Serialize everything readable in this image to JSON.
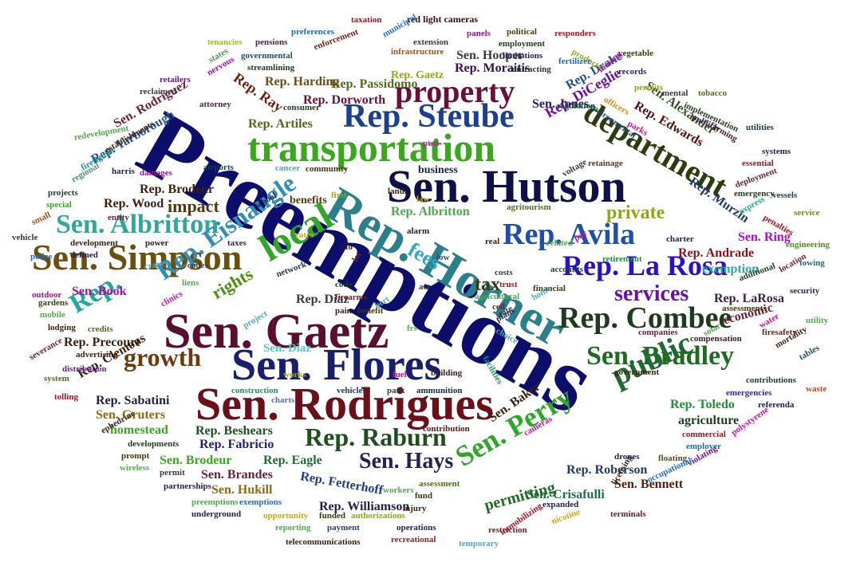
{
  "words": [
    {
      "text": "Preemptions",
      "color": "#0d0d6b"
    },
    {
      "text": "Rep. Horner",
      "color": "#2a7f8a"
    },
    {
      "text": "Sen. Hutson",
      "color": "#101048"
    },
    {
      "text": "transportation",
      "color": "#3aa81e"
    },
    {
      "text": "Rep. Steube",
      "color": "#1d3f8f"
    },
    {
      "text": "Sen. Gaetz",
      "color": "#5a0f2e"
    },
    {
      "text": "Sen. Flores",
      "color": "#1a1f6b"
    },
    {
      "text": "Sen. Rodrigues",
      "color": "#6b0f1a"
    },
    {
      "text": "department",
      "color": "#2f3a0f"
    },
    {
      "text": "local",
      "color": "#2fa82a"
    },
    {
      "text": "Sen. Simpson",
      "color": "#6b4f0f"
    },
    {
      "text": "Sen. Albritton",
      "color": "#2fa89a"
    },
    {
      "text": "Rep. Avila",
      "color": "#1f4fa8"
    },
    {
      "text": "Rep. La Rosa",
      "color": "#2a10c8"
    },
    {
      "text": "property",
      "color": "#6b0f3a"
    },
    {
      "text": "Rep. Combee",
      "color": "#1f3a1f"
    },
    {
      "text": "Sen. Bradley",
      "color": "#1f6b1f"
    },
    {
      "text": "public",
      "color": "#1f6b2f"
    },
    {
      "text": "Rep. Raburn",
      "color": "#1f4f1f"
    },
    {
      "text": "Sen. Hays",
      "color": "#2a1f4f"
    },
    {
      "text": "Sen. Perry",
      "color": "#2fa82a"
    },
    {
      "text": "Rep. Eisnaugle",
      "color": "#2f8fb8"
    },
    {
      "text": "growth",
      "color": "#6b3a0f"
    },
    {
      "text": "Rep.",
      "color": "#1fa8a0"
    },
    {
      "text": "rights",
      "color": "#4f8f0f"
    },
    {
      "text": "fees",
      "color": "#2fa8c8"
    },
    {
      "text": "services",
      "color": "#6b0fa8"
    },
    {
      "text": "tax",
      "color": "#3a3a0f"
    },
    {
      "text": "private",
      "color": "#8fa80f"
    },
    {
      "text": "impact",
      "color": "#4f3a0f"
    },
    {
      "text": "Rep. Passidomo",
      "color": "#4f6b1f"
    },
    {
      "text": "Sen. Hooper",
      "color": "#3a3a3a"
    },
    {
      "text": "Rep. Moraitis",
      "color": "#3a0f4f"
    },
    {
      "text": "Rep. Harding",
      "color": "#6b4f0f"
    },
    {
      "text": "Rep. Gaetz",
      "color": "#8fa80f"
    },
    {
      "text": "Rep. Dorworth",
      "color": "#6b0f3a"
    },
    {
      "text": "Sen. Jones",
      "color": "#1f1f4f"
    },
    {
      "text": "Rep. Artiles",
      "color": "#4f6b1f"
    },
    {
      "text": "Rep. Drake",
      "color": "#1f4f8f"
    },
    {
      "text": "Rep. DiCeglie",
      "color": "#6b0fa8"
    },
    {
      "text": "Rep. Edwards",
      "color": "#4f0f0f"
    },
    {
      "text": "Sen. Alexander",
      "color": "#3a4f1f"
    },
    {
      "text": "Rep. Murzin",
      "color": "#1f3a6b"
    },
    {
      "text": "Rep. Yarborough",
      "color": "#1f4f8f"
    },
    {
      "text": "Sen. Rodriguez",
      "color": "#6b1f3a"
    },
    {
      "text": "Rep. Ray",
      "color": "#6b1f0f"
    },
    {
      "text": "Rep. Brodeur",
      "color": "#3a1f0f"
    },
    {
      "text": "Rep. Wood",
      "color": "#3a1f0f"
    },
    {
      "text": "Rep. Albritton",
      "color": "#4fa84f"
    },
    {
      "text": "Sen. Ring",
      "color": "#a80fc8"
    },
    {
      "text": "Rep. Andrade",
      "color": "#8f0f1f"
    },
    {
      "text": "exemption",
      "color": "#2fa8a0"
    },
    {
      "text": "Rep. LaRosa",
      "color": "#3a1f4f"
    },
    {
      "text": "economic",
      "color": "#6b1f3a"
    },
    {
      "text": "Sen. Book",
      "color": "#a80fa8"
    },
    {
      "text": "Rep. Diaz",
      "color": "#3a3a3a"
    },
    {
      "text": "Rep. Precourt",
      "color": "#3a1f0f"
    },
    {
      "text": "Sen. Diaz",
      "color": "#4fc8c8"
    },
    {
      "text": "Rep. Clemons",
      "color": "#3a1f0f"
    },
    {
      "text": "Rep. Sabatini",
      "color": "#1f1f4f"
    },
    {
      "text": "Sen. Gruters",
      "color": "#8f6b0f"
    },
    {
      "text": "homestead",
      "color": "#3aa81e"
    },
    {
      "text": "Rep. Beshears",
      "color": "#1f4f1f"
    },
    {
      "text": "Rep. Fabricio",
      "color": "#1f1f6b"
    },
    {
      "text": "Sen. Brodeur",
      "color": "#3aa81e"
    },
    {
      "text": "Rep. Eagle",
      "color": "#1f6b3a"
    },
    {
      "text": "Sen. Brandes",
      "color": "#6b1f3a"
    },
    {
      "text": "Sen. Hukill",
      "color": "#8f6b0f"
    },
    {
      "text": "Rep. Fetterhoff",
      "color": "#1f3a8f"
    },
    {
      "text": "Rep. Williamson",
      "color": "#1f1f4f"
    },
    {
      "text": "Sen. Crisafulli",
      "color": "#1f6b4f"
    },
    {
      "text": "Sen. Bennett",
      "color": "#4f1f0f"
    },
    {
      "text": "Rep. Roberson",
      "color": "#1f3a6b"
    },
    {
      "text": "Rep. Toledo",
      "color": "#1f8f3a"
    },
    {
      "text": "agriculture",
      "color": "#1f3a1f"
    },
    {
      "text": "Sen. Baker",
      "color": "#3a1f0f"
    },
    {
      "text": "permitting",
      "color": "#1f6b1f"
    },
    {
      "text": "business",
      "color": "#1f1f4f"
    },
    {
      "text": "benefits",
      "color": "#4f3a0f"
    },
    {
      "text": "red light cameras",
      "color": "#3a0f0f"
    },
    {
      "text": "taxation",
      "color": "#a80f1f"
    },
    {
      "text": "municipal",
      "color": "#1f6bc8"
    },
    {
      "text": "preferences",
      "color": "#1f6ba8"
    },
    {
      "text": "political",
      "color": "#4f3a0f"
    },
    {
      "text": "responders",
      "color": "#a80f1f"
    },
    {
      "text": "employment",
      "color": "#1f3a1f"
    },
    {
      "text": "limitations",
      "color": "#1f1f4f"
    },
    {
      "text": "extension",
      "color": "#3a3a3a"
    },
    {
      "text": "infrastructure",
      "color": "#a84f0f"
    },
    {
      "text": "panels",
      "color": "#a80f8f"
    },
    {
      "text": "contracting",
      "color": "#1f3a1f"
    },
    {
      "text": "products",
      "color": "#8fa80f"
    },
    {
      "text": "vegetable",
      "color": "#3a3a0f"
    },
    {
      "text": "fertilizer",
      "color": "#1f6ba8"
    },
    {
      "text": "tenancies",
      "color": "#8fc80f"
    },
    {
      "text": "pensions",
      "color": "#4f1f3a"
    },
    {
      "text": "enforcement",
      "color": "#6b1f0f"
    },
    {
      "text": "governmental",
      "color": "#1f4f6b"
    },
    {
      "text": "streamlining",
      "color": "#1f3a1f"
    },
    {
      "text": "states",
      "color": "#4f8f6b"
    },
    {
      "text": "nervous",
      "color": "#a80f8f"
    },
    {
      "text": "retailers",
      "color": "#6b0fa8"
    },
    {
      "text": "reclaimed",
      "color": "#3a3a3a"
    },
    {
      "text": "attorney",
      "color": "#4f1f3a"
    },
    {
      "text": "consumer",
      "color": "#1f3a1f"
    },
    {
      "text": "records",
      "color": "#3a1f4f"
    },
    {
      "text": "moving",
      "color": "#a80fa8"
    },
    {
      "text": "permits",
      "color": "#8fa80f"
    },
    {
      "text": "mental",
      "color": "#3a3a3a"
    },
    {
      "text": "tobacco",
      "color": "#4f6b1f"
    },
    {
      "text": "regulation",
      "color": "#1f4f4f"
    },
    {
      "text": "officers",
      "color": "#c88f0f"
    },
    {
      "text": "environmental",
      "color": "#1f4f6b"
    },
    {
      "text": "implementation",
      "color": "#1f3a1f"
    },
    {
      "text": "publicly",
      "color": "#3a1f4f"
    },
    {
      "text": "utilities",
      "color": "#1f3a3a"
    },
    {
      "text": "farming",
      "color": "#3a1f1f"
    },
    {
      "text": "parks",
      "color": "#c80f8f"
    },
    {
      "text": "systems",
      "color": "#1f1f4f"
    },
    {
      "text": "essential",
      "color": "#a80f1f"
    },
    {
      "text": "deployment",
      "color": "#6b1f3a"
    },
    {
      "text": "emergency",
      "color": "#1f3a1f"
    },
    {
      "text": "vessels",
      "color": "#1f3a4f"
    },
    {
      "text": "express",
      "color": "#1fa88f"
    },
    {
      "text": "service",
      "color": "#6b8f0f"
    },
    {
      "text": "penalties",
      "color": "#a80f1f"
    },
    {
      "text": "engineering",
      "color": "#4f8f1f"
    },
    {
      "text": "towing",
      "color": "#1f6b6b"
    },
    {
      "text": "location",
      "color": "#6b1f3a"
    },
    {
      "text": "security",
      "color": "#3a1f4f"
    },
    {
      "text": "additional",
      "color": "#1f3a1f"
    },
    {
      "text": "assessments",
      "color": "#3a3a0f"
    },
    {
      "text": "utility",
      "color": "#4fa84f"
    },
    {
      "text": "water",
      "color": "#c80fa8"
    },
    {
      "text": "firesafety",
      "color": "#6b1f1f"
    },
    {
      "text": "mortality",
      "color": "#3a1f0f"
    },
    {
      "text": "tables",
      "color": "#1f4f6b"
    },
    {
      "text": "solar",
      "color": "#4fa84f"
    },
    {
      "text": "compensation",
      "color": "#3a1f1f"
    },
    {
      "text": "companies",
      "color": "#6b1f3a"
    },
    {
      "text": "contributions",
      "color": "#1f3a3a"
    },
    {
      "text": "waste",
      "color": "#a84f1f"
    },
    {
      "text": "emergencies",
      "color": "#3a1fa8"
    },
    {
      "text": "referenda",
      "color": "#1f1f4f"
    },
    {
      "text": "government",
      "color": "#3a1f0f"
    },
    {
      "text": "commercial",
      "color": "#a80f1f"
    },
    {
      "text": "polystyrene",
      "color": "#c80fa8"
    },
    {
      "text": "employer",
      "color": "#1f6b8f"
    },
    {
      "text": "floating",
      "color": "#4f4f1f"
    },
    {
      "text": "violating",
      "color": "#6b0fa8"
    },
    {
      "text": "occupational",
      "color": "#1f6bc8"
    },
    {
      "text": "licensing",
      "color": "#3a1f0f"
    },
    {
      "text": "drones",
      "color": "#1f1f4f"
    },
    {
      "text": "terminals",
      "color": "#6b1f1f"
    },
    {
      "text": "nicotine",
      "color": "#c8a80f"
    },
    {
      "text": "expanded",
      "color": "#1f1f4f"
    },
    {
      "text": "restriction",
      "color": "#6b1f1f"
    },
    {
      "text": "temporary",
      "color": "#4fa8c8"
    },
    {
      "text": "immobilizing",
      "color": "#a80f1f"
    },
    {
      "text": "operations",
      "color": "#1f1f4f"
    },
    {
      "text": "recreational",
      "color": "#8f1f1f"
    },
    {
      "text": "telecommunications",
      "color": "#3a1f0f"
    },
    {
      "text": "payment",
      "color": "#3a3a6b"
    },
    {
      "text": "reporting",
      "color": "#4fa84f"
    },
    {
      "text": "authorizations",
      "color": "#8fa80f"
    },
    {
      "text": "funded",
      "color": "#3a3a0f"
    },
    {
      "text": "opportunity",
      "color": "#c8a80f"
    },
    {
      "text": "underground",
      "color": "#1f1f4f"
    },
    {
      "text": "exemptions",
      "color": "#1f6bc8"
    },
    {
      "text": "preemptions",
      "color": "#4fa84f"
    },
    {
      "text": "partnerships",
      "color": "#1f1f4f"
    },
    {
      "text": "permit",
      "color": "#3a3a3a"
    },
    {
      "text": "wireless",
      "color": "#4fa84f"
    },
    {
      "text": "prompt",
      "color": "#3a3a0f"
    },
    {
      "text": "developments",
      "color": "#1f3a1f"
    },
    {
      "text": "ephedrine",
      "color": "#3a1f0f"
    },
    {
      "text": "system",
      "color": "#4f6b1f"
    },
    {
      "text": "tolling",
      "color": "#a80f1f"
    },
    {
      "text": "distribution",
      "color": "#6b1fa8"
    },
    {
      "text": "severance",
      "color": "#6b1f3a"
    },
    {
      "text": "advertising",
      "color": "#3a1f0f"
    },
    {
      "text": "credits",
      "color": "#4f6b1f"
    },
    {
      "text": "lodging",
      "color": "#3a1f0f"
    },
    {
      "text": "mobile",
      "color": "#4fa84f"
    },
    {
      "text": "gardens",
      "color": "#3a3a0f"
    },
    {
      "text": "outdoor",
      "color": "#a80f8f"
    },
    {
      "text": "police",
      "color": "#1f6bc8"
    },
    {
      "text": "vehicle",
      "color": "#3a3a3a"
    },
    {
      "text": "small",
      "color": "#a84f0f"
    },
    {
      "text": "special",
      "color": "#3aa81e"
    },
    {
      "text": "projects",
      "color": "#1f3a3a"
    },
    {
      "text": "regional",
      "color": "#4f8f6b"
    },
    {
      "text": "firefighter",
      "color": "#1f8f8f"
    },
    {
      "text": "establishments",
      "color": "#3a1f0f"
    },
    {
      "text": "harris",
      "color": "#1f1f4f"
    },
    {
      "text": "redevelopment",
      "color": "#4fa84f"
    },
    {
      "text": "damages",
      "color": "#a80f8f"
    },
    {
      "text": "airports",
      "color": "#1f3a3a"
    },
    {
      "text": "entity",
      "color": "#6b1f3a"
    },
    {
      "text": "development",
      "color": "#3a1f0f"
    },
    {
      "text": "defined",
      "color": "#1f1f4f"
    },
    {
      "text": "power",
      "color": "#1f1f1f"
    },
    {
      "text": "taxes",
      "color": "#3a1f4f"
    },
    {
      "text": "codes",
      "color": "#3a3a3a"
    },
    {
      "text": "cranes",
      "color": "#4fa8c8"
    },
    {
      "text": "liens",
      "color": "#4fa84f"
    },
    {
      "text": "clinics",
      "color": "#c80fa8"
    },
    {
      "text": "network",
      "color": "#1f3a3a"
    },
    {
      "text": "project",
      "color": "#4fa8c8"
    },
    {
      "text": "school",
      "color": "#1f1f4f"
    },
    {
      "text": "rates",
      "color": "#c8a80f"
    },
    {
      "text": "cfo",
      "color": "#3a1f0f"
    },
    {
      "text": "lot",
      "color": "#6b1f3a"
    },
    {
      "text": "code",
      "color": "#1f3a1f"
    },
    {
      "text": "pain",
      "color": "#3a1f1f"
    },
    {
      "text": "benefit",
      "color": "#3a3a0f"
    },
    {
      "text": "bert",
      "color": "#4fa8c8"
    },
    {
      "text": "firearms",
      "color": "#6b1f1f"
    },
    {
      "text": "frs",
      "color": "#4fa84f"
    },
    {
      "text": "fuel",
      "color": "#c80f8f"
    },
    {
      "text": "works",
      "color": "#8fa80f"
    },
    {
      "text": "construction",
      "color": "#1f8f6b"
    },
    {
      "text": "charts",
      "color": "#4f6bc8"
    },
    {
      "text": "vehicles",
      "color": "#1f3a4f"
    },
    {
      "text": "park",
      "color": "#3a3a3a"
    },
    {
      "text": "ammunition",
      "color": "#1f1f4f"
    },
    {
      "text": "contribution",
      "color": "#4f1f1f"
    },
    {
      "text": "workers",
      "color": "#4fa84f"
    },
    {
      "text": "cameras",
      "color": "#c80fa8"
    },
    {
      "text": "fund",
      "color": "#3a3a0f"
    },
    {
      "text": "injury",
      "color": "#3a1f0f"
    },
    {
      "text": "assessment",
      "color": "#4f6b1f"
    },
    {
      "text": "building",
      "color": "#3a1f1f"
    },
    {
      "text": "facilities",
      "color": "#1f8f6b"
    },
    {
      "text": "state",
      "color": "#3a3a3a"
    },
    {
      "text": "choice",
      "color": "#4fa8a8"
    },
    {
      "text": "plans",
      "color": "#1f1f4f"
    },
    {
      "text": "cell",
      "color": "#6b1f3a"
    },
    {
      "text": "agricultural",
      "color": "#4fa84f"
    },
    {
      "text": "trust",
      "color": "#a80f1f"
    },
    {
      "text": "financial",
      "color": "#3a3a0f"
    },
    {
      "text": "home",
      "color": "#4fa8c8"
    },
    {
      "text": "accounts",
      "color": "#1f3a3a"
    },
    {
      "text": "retirement",
      "color": "#1f8f3a"
    },
    {
      "text": "charter",
      "color": "#1f1f4f"
    },
    {
      "text": "pay",
      "color": "#c80fa8"
    },
    {
      "text": "related",
      "color": "#4fa84f"
    },
    {
      "text": "costs",
      "color": "#3a3a3a"
    },
    {
      "text": "low",
      "color": "#3a3a6b"
    },
    {
      "text": "alarm",
      "color": "#1f1f1f"
    },
    {
      "text": "real",
      "color": "#3a1f0f"
    },
    {
      "text": "act",
      "color": "#3a3a3a"
    },
    {
      "text": "ptsd",
      "color": "#c80fa8"
    },
    {
      "text": "agritourism",
      "color": "#4f6b1f"
    },
    {
      "text": "lands",
      "color": "#3a1f0f"
    },
    {
      "text": "law",
      "color": "#c8a80f"
    },
    {
      "text": "first",
      "color": "#8fa80f"
    },
    {
      "text": "cancer",
      "color": "#4fa8c8"
    },
    {
      "text": "community",
      "color": "#3a3a0f"
    },
    {
      "text": "voltage",
      "color": "#3a3a3a"
    },
    {
      "text": "retainage",
      "color": "#4f3a1f"
    }
  ]
}
